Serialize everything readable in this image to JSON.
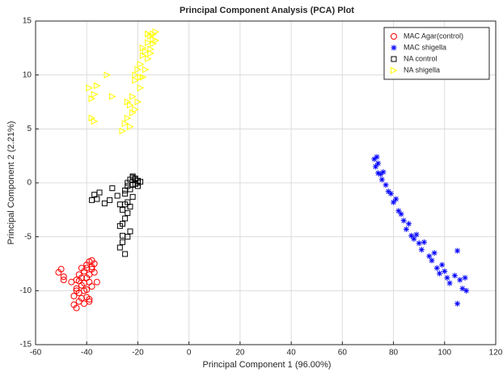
{
  "chart_data": {
    "type": "scatter",
    "title": "Principal Component Analysis (PCA) Plot",
    "x_label": "Principal Component 1 (96.00%)",
    "y_label": "Principal Component 2 (2.21%)",
    "xlim": [
      -60,
      120
    ],
    "ylim": [
      -15,
      15
    ],
    "xticks": [
      -60,
      -40,
      -20,
      0,
      20,
      40,
      60,
      80,
      100,
      120
    ],
    "yticks": [
      -15,
      -10,
      -5,
      0,
      5,
      10,
      15
    ],
    "grid": true,
    "legend": "upper right",
    "series": [
      {
        "name": "MAC Agar(control)",
        "color": "#ff0000",
        "marker": "o",
        "x": [
          -51,
          -50,
          -49,
          -49,
          -46,
          -45,
          -45,
          -44,
          -44,
          -44,
          -43,
          -43,
          -43,
          -42,
          -42,
          -42,
          -41,
          -41,
          -41,
          -40,
          -40,
          -40,
          -40,
          -39,
          -39,
          -39,
          -39,
          -38,
          -38,
          -38,
          -37,
          -37,
          -44,
          -43,
          -42,
          -41,
          -40,
          -39,
          -36,
          -38
        ],
        "values": [
          -8.3,
          -8.0,
          -9.0,
          -8.7,
          -9.2,
          -10.5,
          -11.3,
          -11.6,
          -9.0,
          -9.8,
          -10.2,
          -8.5,
          -11.0,
          -7.9,
          -9.5,
          -10.7,
          -8.2,
          -10.0,
          -11.2,
          -7.6,
          -8.8,
          -9.9,
          -10.6,
          -7.3,
          -8.5,
          -9.2,
          -10.8,
          -7.2,
          -8.0,
          -9.6,
          -7.5,
          -8.3,
          -10.0,
          -9.1,
          -8.8,
          -9.3,
          -7.9,
          -11.0,
          -9.2,
          -7.8
        ]
      },
      {
        "name": "MAC shigella",
        "color": "#0000ff",
        "marker": "*",
        "x": [
          72.5,
          73,
          73.5,
          74,
          74,
          75,
          75.5,
          76,
          77,
          78,
          79,
          80,
          81,
          82,
          83,
          84,
          85,
          86,
          87,
          88,
          89,
          90,
          91,
          92,
          94,
          95,
          96,
          97,
          98,
          99,
          100,
          101,
          102,
          104,
          105,
          106,
          107,
          108,
          108.5,
          105
        ],
        "values": [
          2.2,
          1.5,
          2.4,
          0.9,
          1.8,
          0.8,
          0.3,
          1.0,
          -0.2,
          -0.8,
          -1.0,
          -1.8,
          -1.5,
          -2.6,
          -2.9,
          -3.5,
          -4.3,
          -3.8,
          -4.9,
          -5.2,
          -4.8,
          -5.6,
          -6.2,
          -5.5,
          -6.8,
          -7.2,
          -6.5,
          -7.9,
          -8.4,
          -7.6,
          -8.2,
          -8.8,
          -9.3,
          -8.6,
          -11.2,
          -9.0,
          -9.8,
          -8.8,
          -10.0,
          -6.3
        ]
      },
      {
        "name": "NA control",
        "color": "#000000",
        "marker": "s",
        "x": [
          -38,
          -37,
          -36,
          -35,
          -33,
          -31,
          -30,
          -28,
          -27,
          -27,
          -26,
          -26,
          -26,
          -25,
          -25,
          -25,
          -25,
          -24,
          -24,
          -24,
          -24,
          -23,
          -23,
          -23,
          -22,
          -22,
          -22,
          -21,
          -21,
          -20,
          -20,
          -19,
          -23,
          -24,
          -26,
          -25,
          -22,
          -21,
          -20,
          -27
        ],
        "values": [
          -1.6,
          -1.1,
          -1.5,
          -0.9,
          -1.9,
          -1.6,
          -0.5,
          -1.2,
          -4.0,
          -6.0,
          -2.5,
          -3.8,
          -4.9,
          -1.0,
          -2.0,
          -3.3,
          -6.6,
          -0.3,
          -1.8,
          -2.8,
          -5.0,
          0.3,
          -0.6,
          -4.5,
          0.6,
          -0.2,
          -1.3,
          0.4,
          -0.1,
          0.2,
          -0.3,
          0.1,
          -2.2,
          0.0,
          -5.5,
          -0.7,
          0.5,
          0.3,
          0.0,
          -2.0
        ]
      },
      {
        "name": "NA shigella",
        "color": "#ffff00",
        "marker": ">",
        "x": [
          -39,
          -38,
          -38,
          -37,
          -37,
          -36,
          -32,
          -30,
          -26,
          -25,
          -24,
          -23,
          -22,
          -22,
          -21,
          -21,
          -20,
          -20,
          -19,
          -19,
          -18,
          -18,
          -17,
          -17,
          -16,
          -16,
          -15,
          -15,
          -14,
          -14,
          -13,
          -13,
          -24,
          -23,
          -21,
          -19,
          -15,
          -14,
          -18,
          -16
        ],
        "values": [
          8.8,
          7.8,
          6.0,
          8.2,
          5.7,
          9.0,
          10.0,
          8.0,
          4.8,
          5.5,
          6.0,
          7.2,
          6.5,
          8.0,
          6.8,
          9.5,
          7.5,
          10.5,
          8.8,
          11.0,
          9.8,
          11.8,
          10.5,
          12.2,
          11.5,
          13.0,
          12.4,
          13.6,
          12.9,
          13.8,
          13.2,
          14.0,
          7.5,
          5.2,
          10.0,
          9.8,
          12.0,
          13.3,
          12.5,
          13.8
        ]
      }
    ]
  }
}
